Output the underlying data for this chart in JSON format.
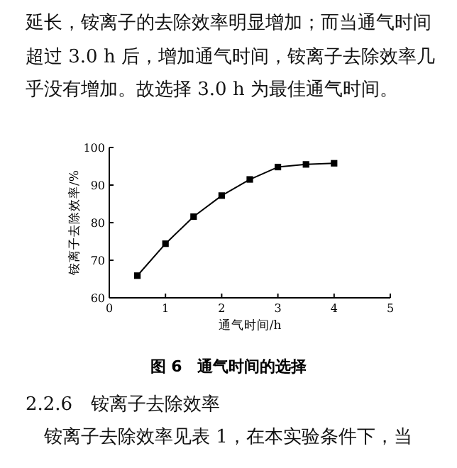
{
  "chart_data": {
    "type": "line",
    "title": "图 6　通气时间的选择",
    "xlabel": "通气时间/h",
    "ylabel": "铵离子去除效率/%",
    "x": [
      0.5,
      1,
      1.5,
      2,
      2.5,
      3,
      3.5,
      4
    ],
    "series": [
      {
        "color": "#000000",
        "values": [
          65.9,
          74.4,
          81.6,
          87.2,
          91.5,
          94.8,
          95.5,
          95.8
        ]
      }
    ],
    "xlim": [
      0,
      5
    ],
    "xticks": [
      0,
      1,
      2,
      3,
      4,
      5
    ],
    "ylim": [
      60,
      100
    ],
    "yticks": [
      60,
      70,
      80,
      90,
      100
    ],
    "marker": "square",
    "line_style": "solid",
    "grid": false,
    "annotations": [
      "延长，铵离子的去除效率明显增加；而当通气时间",
      "超过 3.0 h 后，增加通气时间，铵离子去除效率几",
      "乎没有增加。故选择 3.0 h 为最佳通气时间。",
      "2.2.6　铵离子去除效率",
      "　铵离子去除效率见表 1，在本实验条件下，当"
    ]
  }
}
